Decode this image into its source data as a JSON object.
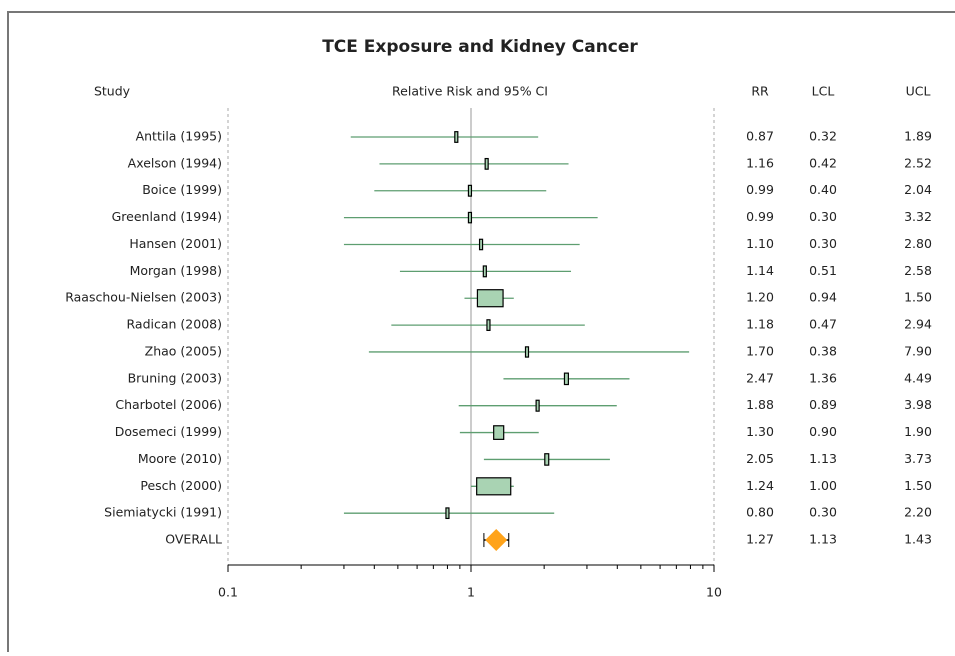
{
  "chart_data": {
    "type": "forest",
    "title": "TCE Exposure and Kidney Cancer",
    "category_label": "Study",
    "xlabel": "Relative Risk and 95% CI",
    "categories": [
      "Anttila (1995)",
      "Axelson (1994)",
      "Boice (1999)",
      "Greenland (1994)",
      "Hansen (2001)",
      "Morgan (1998)",
      "Raaschou-Nielsen (2003)",
      "Radican (2008)",
      "Zhao (2005)",
      "Bruning (2003)",
      "Charbotel (2006)",
      "Dosemeci (1999)",
      "Moore (2010)",
      "Pesch (2000)",
      "Siemiatycki (1991)",
      "OVERALL"
    ],
    "series": [
      {
        "name": "RR",
        "values": [
          0.87,
          1.16,
          0.99,
          0.99,
          1.1,
          1.14,
          1.2,
          1.18,
          1.7,
          2.47,
          1.88,
          1.3,
          2.05,
          1.24,
          0.8,
          1.27
        ],
        "value_labels": [
          "0.87",
          "1.16",
          "0.99",
          "0.99",
          "1.10",
          "1.14",
          "1.20",
          "1.18",
          "1.70",
          "2.47",
          "1.88",
          "1.30",
          "2.05",
          "1.24",
          "0.80",
          "1.27"
        ]
      },
      {
        "name": "LCL",
        "values": [
          0.32,
          0.42,
          0.4,
          0.3,
          0.3,
          0.51,
          0.94,
          0.47,
          0.38,
          1.36,
          0.89,
          0.9,
          1.13,
          1.0,
          0.3,
          1.13
        ],
        "value_labels": [
          "0.32",
          "0.42",
          "0.40",
          "0.30",
          "0.30",
          "0.51",
          "0.94",
          "0.47",
          "0.38",
          "1.36",
          "0.89",
          "0.90",
          "1.13",
          "1.00",
          "0.30",
          "1.13"
        ]
      },
      {
        "name": "UCL",
        "values": [
          1.89,
          2.52,
          2.04,
          3.32,
          2.8,
          2.58,
          1.5,
          2.94,
          7.9,
          4.49,
          3.98,
          1.9,
          3.73,
          1.5,
          2.2,
          1.43
        ],
        "value_labels": [
          "1.89",
          "2.52",
          "2.04",
          "3.32",
          "2.80",
          "2.58",
          "1.50",
          "2.94",
          "7.90",
          "4.49",
          "3.98",
          "1.90",
          "3.73",
          "1.50",
          "2.20",
          "1.43"
        ]
      }
    ],
    "xlim": [
      0.1,
      10
    ],
    "xticks": [
      0.1,
      1,
      10
    ],
    "xminorticks": [
      0.2,
      0.3,
      0.4,
      0.5,
      0.6,
      0.7,
      0.8,
      0.9,
      2,
      3,
      4,
      5,
      6,
      7,
      8,
      9
    ],
    "log_scale": true,
    "refline": 1,
    "color": "#a9d3b3",
    "line_color": "#5e9e70",
    "summary_color": "#ffa31a"
  }
}
